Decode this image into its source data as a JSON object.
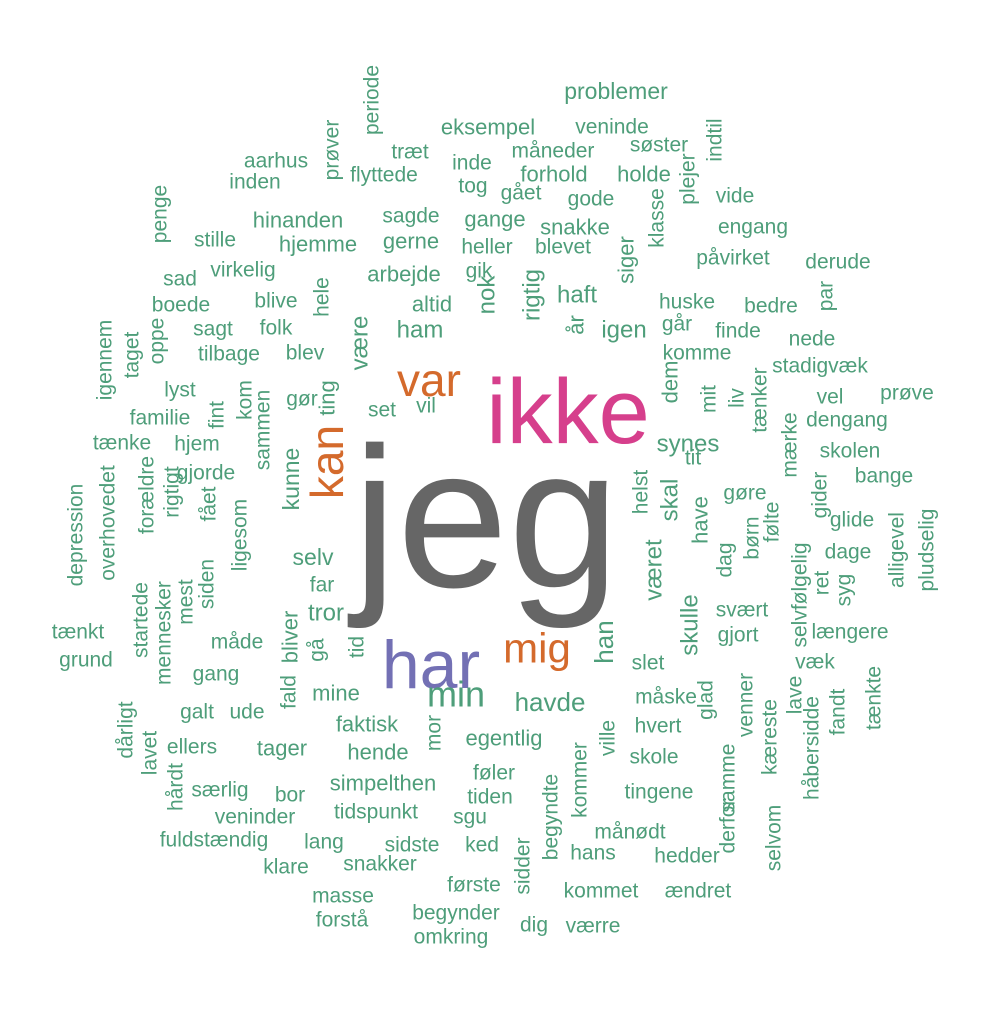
{
  "colors": {
    "top": "#666666",
    "second": "#d63f8c",
    "third": "#7370b4",
    "fourth": "#d46a2c",
    "rest": "#4e9e7a"
  },
  "words": [
    {
      "text": "jeg",
      "color": "top"
    },
    {
      "text": "ikke",
      "color": "second"
    },
    {
      "text": "har",
      "color": "third"
    },
    {
      "text": "var",
      "color": "fourth"
    },
    {
      "text": "kan",
      "color": "fourth"
    },
    {
      "text": "mig",
      "color": "fourth"
    },
    {
      "text": "problemer",
      "color": "rest"
    },
    {
      "text": "periode",
      "color": "rest"
    },
    {
      "text": "prøver",
      "color": "rest"
    },
    {
      "text": "eksempel",
      "color": "rest"
    },
    {
      "text": "veninde",
      "color": "rest"
    },
    {
      "text": "træt",
      "color": "rest"
    },
    {
      "text": "måneder",
      "color": "rest"
    },
    {
      "text": "søster",
      "color": "rest"
    },
    {
      "text": "indtil",
      "color": "rest"
    },
    {
      "text": "aarhus",
      "color": "rest"
    },
    {
      "text": "flyttede",
      "color": "rest"
    },
    {
      "text": "inde",
      "color": "rest"
    },
    {
      "text": "forhold",
      "color": "rest"
    },
    {
      "text": "holde",
      "color": "rest"
    },
    {
      "text": "inden",
      "color": "rest"
    },
    {
      "text": "tog",
      "color": "rest"
    },
    {
      "text": "gået",
      "color": "rest"
    },
    {
      "text": "gode",
      "color": "rest"
    },
    {
      "text": "plejer",
      "color": "rest"
    },
    {
      "text": "vide",
      "color": "rest"
    },
    {
      "text": "penge",
      "color": "rest"
    },
    {
      "text": "hinanden",
      "color": "rest"
    },
    {
      "text": "sagde",
      "color": "rest"
    },
    {
      "text": "gange",
      "color": "rest"
    },
    {
      "text": "snakke",
      "color": "rest"
    },
    {
      "text": "klasse",
      "color": "rest"
    },
    {
      "text": "engang",
      "color": "rest"
    },
    {
      "text": "stille",
      "color": "rest"
    },
    {
      "text": "hjemme",
      "color": "rest"
    },
    {
      "text": "gerne",
      "color": "rest"
    },
    {
      "text": "heller",
      "color": "rest"
    },
    {
      "text": "blevet",
      "color": "rest"
    },
    {
      "text": "siger",
      "color": "rest"
    },
    {
      "text": "påvirket",
      "color": "rest"
    },
    {
      "text": "derude",
      "color": "rest"
    },
    {
      "text": "sad",
      "color": "rest"
    },
    {
      "text": "virkelig",
      "color": "rest"
    },
    {
      "text": "arbejde",
      "color": "rest"
    },
    {
      "text": "gik",
      "color": "rest"
    },
    {
      "text": "boede",
      "color": "rest"
    },
    {
      "text": "blive",
      "color": "rest"
    },
    {
      "text": "hele",
      "color": "rest"
    },
    {
      "text": "altid",
      "color": "rest"
    },
    {
      "text": "nok",
      "color": "rest"
    },
    {
      "text": "rigtig",
      "color": "rest"
    },
    {
      "text": "haft",
      "color": "rest"
    },
    {
      "text": "huske",
      "color": "rest"
    },
    {
      "text": "bedre",
      "color": "rest"
    },
    {
      "text": "par",
      "color": "rest"
    },
    {
      "text": "sagt",
      "color": "rest"
    },
    {
      "text": "folk",
      "color": "rest"
    },
    {
      "text": "ham",
      "color": "rest"
    },
    {
      "text": "år",
      "color": "rest"
    },
    {
      "text": "igen",
      "color": "rest"
    },
    {
      "text": "går",
      "color": "rest"
    },
    {
      "text": "finde",
      "color": "rest"
    },
    {
      "text": "nede",
      "color": "rest"
    },
    {
      "text": "igennem",
      "color": "rest"
    },
    {
      "text": "taget",
      "color": "rest"
    },
    {
      "text": "oppe",
      "color": "rest"
    },
    {
      "text": "tilbage",
      "color": "rest"
    },
    {
      "text": "blev",
      "color": "rest"
    },
    {
      "text": "være",
      "color": "rest"
    },
    {
      "text": "komme",
      "color": "rest"
    },
    {
      "text": "stadigvæk",
      "color": "rest"
    },
    {
      "text": "lyst",
      "color": "rest"
    },
    {
      "text": "dem",
      "color": "rest"
    },
    {
      "text": "prøve",
      "color": "rest"
    },
    {
      "text": "familie",
      "color": "rest"
    },
    {
      "text": "fint",
      "color": "rest"
    },
    {
      "text": "kom",
      "color": "rest"
    },
    {
      "text": "sammen",
      "color": "rest"
    },
    {
      "text": "gør",
      "color": "rest"
    },
    {
      "text": "ting",
      "color": "rest"
    },
    {
      "text": "set",
      "color": "rest"
    },
    {
      "text": "vil",
      "color": "rest"
    },
    {
      "text": "mit",
      "color": "rest"
    },
    {
      "text": "liv",
      "color": "rest"
    },
    {
      "text": "tænker",
      "color": "rest"
    },
    {
      "text": "vel",
      "color": "rest"
    },
    {
      "text": "dengang",
      "color": "rest"
    },
    {
      "text": "tænke",
      "color": "rest"
    },
    {
      "text": "hjem",
      "color": "rest"
    },
    {
      "text": "synes",
      "color": "rest"
    },
    {
      "text": "mærke",
      "color": "rest"
    },
    {
      "text": "skolen",
      "color": "rest"
    },
    {
      "text": "overhovedet",
      "color": "rest"
    },
    {
      "text": "forældre",
      "color": "rest"
    },
    {
      "text": "gjorde",
      "color": "rest"
    },
    {
      "text": "kunne",
      "color": "rest"
    },
    {
      "text": "tit",
      "color": "rest"
    },
    {
      "text": "bange",
      "color": "rest"
    },
    {
      "text": "depression",
      "color": "rest"
    },
    {
      "text": "rigtigt",
      "color": "rest"
    },
    {
      "text": "fået",
      "color": "rest"
    },
    {
      "text": "helst",
      "color": "rest"
    },
    {
      "text": "skal",
      "color": "rest"
    },
    {
      "text": "gøre",
      "color": "rest"
    },
    {
      "text": "gider",
      "color": "rest"
    },
    {
      "text": "glide",
      "color": "rest"
    },
    {
      "text": "ligesom",
      "color": "rest"
    },
    {
      "text": "have",
      "color": "rest"
    },
    {
      "text": "børn",
      "color": "rest"
    },
    {
      "text": "følte",
      "color": "rest"
    },
    {
      "text": "alligevel",
      "color": "rest"
    },
    {
      "text": "pludselig",
      "color": "rest"
    },
    {
      "text": "startede",
      "color": "rest"
    },
    {
      "text": "siden",
      "color": "rest"
    },
    {
      "text": "selv",
      "color": "rest"
    },
    {
      "text": "været",
      "color": "rest"
    },
    {
      "text": "dag",
      "color": "rest"
    },
    {
      "text": "selvfølgelig",
      "color": "rest"
    },
    {
      "text": "dage",
      "color": "rest"
    },
    {
      "text": "mennesker",
      "color": "rest"
    },
    {
      "text": "mest",
      "color": "rest"
    },
    {
      "text": "far",
      "color": "rest"
    },
    {
      "text": "ret",
      "color": "rest"
    },
    {
      "text": "syg",
      "color": "rest"
    },
    {
      "text": "tænkt",
      "color": "rest"
    },
    {
      "text": "tror",
      "color": "rest"
    },
    {
      "text": "skulle",
      "color": "rest"
    },
    {
      "text": "svært",
      "color": "rest"
    },
    {
      "text": "grund",
      "color": "rest"
    },
    {
      "text": "måde",
      "color": "rest"
    },
    {
      "text": "bliver",
      "color": "rest"
    },
    {
      "text": "gå",
      "color": "rest"
    },
    {
      "text": "tid",
      "color": "rest"
    },
    {
      "text": "han",
      "color": "rest"
    },
    {
      "text": "gjort",
      "color": "rest"
    },
    {
      "text": "længere",
      "color": "rest"
    },
    {
      "text": "gang",
      "color": "rest"
    },
    {
      "text": "slet",
      "color": "rest"
    },
    {
      "text": "væk",
      "color": "rest"
    },
    {
      "text": "tænkte",
      "color": "rest"
    },
    {
      "text": "dårligt",
      "color": "rest"
    },
    {
      "text": "mine",
      "color": "rest"
    },
    {
      "text": "min",
      "color": "rest"
    },
    {
      "text": "havde",
      "color": "rest"
    },
    {
      "text": "måske",
      "color": "rest"
    },
    {
      "text": "glad",
      "color": "rest"
    },
    {
      "text": "venner",
      "color": "rest"
    },
    {
      "text": "lave",
      "color": "rest"
    },
    {
      "text": "galt",
      "color": "rest"
    },
    {
      "text": "ude",
      "color": "rest"
    },
    {
      "text": "fald",
      "color": "rest"
    },
    {
      "text": "faktisk",
      "color": "rest"
    },
    {
      "text": "hvert",
      "color": "rest"
    },
    {
      "text": "fandt",
      "color": "rest"
    },
    {
      "text": "lavet",
      "color": "rest"
    },
    {
      "text": "ellers",
      "color": "rest"
    },
    {
      "text": "tager",
      "color": "rest"
    },
    {
      "text": "hende",
      "color": "rest"
    },
    {
      "text": "mor",
      "color": "rest"
    },
    {
      "text": "egentlig",
      "color": "rest"
    },
    {
      "text": "ville",
      "color": "rest"
    },
    {
      "text": "kæreste",
      "color": "rest"
    },
    {
      "text": "håbersidde",
      "color": "rest"
    },
    {
      "text": "hårdt",
      "color": "rest"
    },
    {
      "text": "skole",
      "color": "rest"
    },
    {
      "text": "samme",
      "color": "rest"
    },
    {
      "text": "særlig",
      "color": "rest"
    },
    {
      "text": "bor",
      "color": "rest"
    },
    {
      "text": "simpelthen",
      "color": "rest"
    },
    {
      "text": "føler",
      "color": "rest"
    },
    {
      "text": "begyndte",
      "color": "rest"
    },
    {
      "text": "kommer",
      "color": "rest"
    },
    {
      "text": "tingene",
      "color": "rest"
    },
    {
      "text": "veninder",
      "color": "rest"
    },
    {
      "text": "tidspunkt",
      "color": "rest"
    },
    {
      "text": "tiden",
      "color": "rest"
    },
    {
      "text": "sgu",
      "color": "rest"
    },
    {
      "text": "derfor",
      "color": "rest"
    },
    {
      "text": "selvom",
      "color": "rest"
    },
    {
      "text": "fuldstændig",
      "color": "rest"
    },
    {
      "text": "lang",
      "color": "rest"
    },
    {
      "text": "sidste",
      "color": "rest"
    },
    {
      "text": "ked",
      "color": "rest"
    },
    {
      "text": "månødt",
      "color": "rest"
    },
    {
      "text": "klare",
      "color": "rest"
    },
    {
      "text": "snakker",
      "color": "rest"
    },
    {
      "text": "hans",
      "color": "rest"
    },
    {
      "text": "hedder",
      "color": "rest"
    },
    {
      "text": "sidder",
      "color": "rest"
    },
    {
      "text": "masse",
      "color": "rest"
    },
    {
      "text": "første",
      "color": "rest"
    },
    {
      "text": "kommet",
      "color": "rest"
    },
    {
      "text": "ændret",
      "color": "rest"
    },
    {
      "text": "forstå",
      "color": "rest"
    },
    {
      "text": "begynder",
      "color": "rest"
    },
    {
      "text": "dig",
      "color": "rest"
    },
    {
      "text": "værre",
      "color": "rest"
    },
    {
      "text": "omkring",
      "color": "rest"
    }
  ]
}
